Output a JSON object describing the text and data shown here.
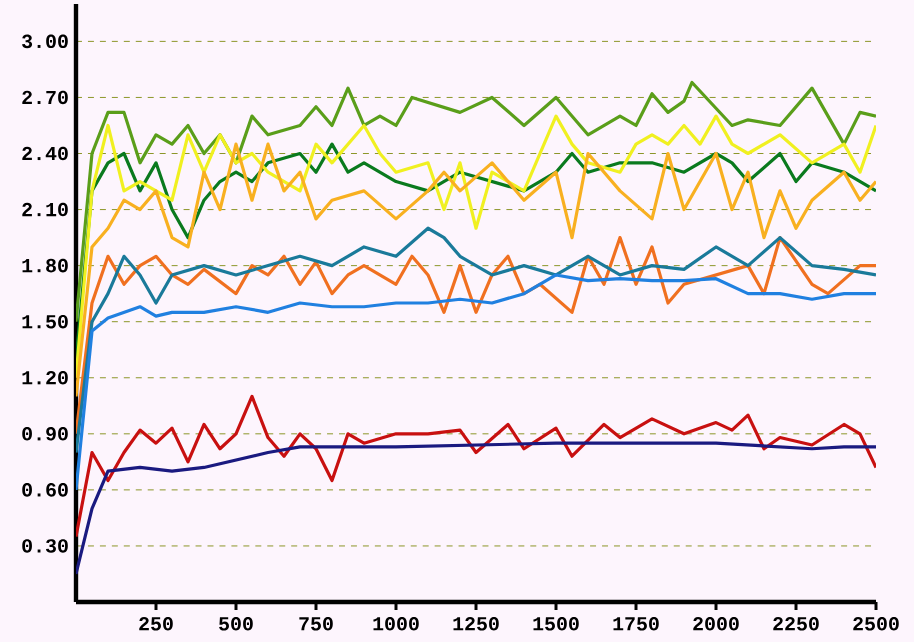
{
  "chart_data": {
    "type": "line",
    "xlim": [
      0,
      2500
    ],
    "ylim": [
      0,
      3.2
    ],
    "xticks": [
      250,
      500,
      750,
      1000,
      1250,
      1500,
      1750,
      2000,
      2250,
      2500
    ],
    "yticks": [
      {
        "value": 0.3,
        "label": "0.30"
      },
      {
        "value": 0.6,
        "label": "0.60"
      },
      {
        "value": 0.9,
        "label": "0.90"
      },
      {
        "value": 1.2,
        "label": "1.20"
      },
      {
        "value": 1.5,
        "label": "1.50"
      },
      {
        "value": 1.8,
        "label": "1.80"
      },
      {
        "value": 2.1,
        "label": "2.10"
      },
      {
        "value": 2.4,
        "label": "2.40"
      },
      {
        "value": 2.7,
        "label": "2.70"
      },
      {
        "value": 3.0,
        "label": "3.00"
      }
    ],
    "grid": "y",
    "marker": "none",
    "line_style": "solid",
    "series": [
      {
        "color": "#5a9e1a",
        "x": [
          0,
          50,
          100,
          150,
          200,
          250,
          300,
          350,
          400,
          450,
          500,
          550,
          600,
          700,
          750,
          800,
          850,
          900,
          950,
          1000,
          1050,
          1200,
          1300,
          1400,
          1500,
          1600,
          1700,
          1750,
          1800,
          1850,
          1900,
          1925,
          2050,
          2100,
          2200,
          2300,
          2400,
          2450,
          2500
        ],
        "values": [
          1.5,
          2.4,
          2.62,
          2.62,
          2.35,
          2.5,
          2.45,
          2.55,
          2.4,
          2.5,
          2.35,
          2.6,
          2.5,
          2.55,
          2.65,
          2.55,
          2.75,
          2.55,
          2.6,
          2.55,
          2.7,
          2.62,
          2.7,
          2.55,
          2.7,
          2.5,
          2.6,
          2.55,
          2.72,
          2.62,
          2.68,
          2.78,
          2.55,
          2.58,
          2.55,
          2.75,
          2.45,
          2.62,
          2.6
        ]
      },
      {
        "color": "#0a7a1e",
        "x": [
          0,
          50,
          100,
          150,
          200,
          250,
          300,
          350,
          400,
          450,
          500,
          550,
          600,
          700,
          750,
          800,
          850,
          900,
          1000,
          1100,
          1200,
          1300,
          1400,
          1500,
          1550,
          1600,
          1700,
          1800,
          1900,
          2000,
          2050,
          2100,
          2200,
          2250,
          2300,
          2400,
          2450,
          2500
        ],
        "values": [
          1.3,
          2.2,
          2.35,
          2.4,
          2.2,
          2.35,
          2.1,
          1.95,
          2.15,
          2.25,
          2.3,
          2.25,
          2.35,
          2.4,
          2.3,
          2.45,
          2.3,
          2.35,
          2.25,
          2.2,
          2.3,
          2.25,
          2.2,
          2.3,
          2.4,
          2.3,
          2.35,
          2.35,
          2.3,
          2.4,
          2.35,
          2.25,
          2.4,
          2.25,
          2.35,
          2.3,
          2.25,
          2.2
        ]
      },
      {
        "color": "#f0f020",
        "x": [
          0,
          50,
          100,
          150,
          200,
          250,
          300,
          350,
          400,
          450,
          500,
          550,
          600,
          700,
          750,
          800,
          900,
          950,
          1000,
          1100,
          1150,
          1200,
          1250,
          1300,
          1400,
          1500,
          1550,
          1600,
          1700,
          1750,
          1800,
          1850,
          1900,
          1950,
          2000,
          2050,
          2100,
          2200,
          2300,
          2400,
          2450,
          2500
        ],
        "values": [
          1.2,
          2.2,
          2.55,
          2.2,
          2.25,
          2.2,
          2.15,
          2.5,
          2.3,
          2.5,
          2.35,
          2.4,
          2.3,
          2.2,
          2.45,
          2.35,
          2.55,
          2.4,
          2.3,
          2.35,
          2.1,
          2.35,
          2.0,
          2.3,
          2.2,
          2.6,
          2.45,
          2.35,
          2.3,
          2.45,
          2.5,
          2.45,
          2.55,
          2.45,
          2.6,
          2.45,
          2.4,
          2.5,
          2.35,
          2.45,
          2.3,
          2.55
        ]
      },
      {
        "color": "#f8b020",
        "x": [
          0,
          50,
          100,
          150,
          200,
          250,
          300,
          350,
          400,
          450,
          500,
          550,
          600,
          650,
          700,
          750,
          800,
          900,
          1000,
          1100,
          1150,
          1200,
          1300,
          1400,
          1500,
          1550,
          1600,
          1700,
          1800,
          1850,
          1900,
          2000,
          2050,
          2100,
          2150,
          2200,
          2250,
          2300,
          2400,
          2450,
          2500
        ],
        "values": [
          1.1,
          1.9,
          2.0,
          2.15,
          2.1,
          2.2,
          1.95,
          1.9,
          2.3,
          2.1,
          2.45,
          2.15,
          2.45,
          2.2,
          2.3,
          2.05,
          2.15,
          2.2,
          2.05,
          2.2,
          2.3,
          2.2,
          2.35,
          2.15,
          2.3,
          1.95,
          2.4,
          2.2,
          2.05,
          2.4,
          2.1,
          2.4,
          2.1,
          2.3,
          1.95,
          2.2,
          2.0,
          2.15,
          2.3,
          2.15,
          2.25
        ]
      },
      {
        "color": "#f07020",
        "x": [
          0,
          50,
          100,
          150,
          200,
          250,
          300,
          350,
          400,
          500,
          550,
          600,
          650,
          700,
          750,
          800,
          850,
          900,
          1000,
          1050,
          1100,
          1150,
          1200,
          1250,
          1300,
          1350,
          1400,
          1450,
          1550,
          1600,
          1650,
          1700,
          1750,
          1800,
          1850,
          1900,
          2000,
          2100,
          2150,
          2200,
          2300,
          2350,
          2450,
          2500
        ],
        "values": [
          0.9,
          1.6,
          1.85,
          1.7,
          1.8,
          1.85,
          1.75,
          1.7,
          1.78,
          1.65,
          1.8,
          1.75,
          1.85,
          1.7,
          1.82,
          1.65,
          1.75,
          1.8,
          1.7,
          1.85,
          1.75,
          1.55,
          1.8,
          1.55,
          1.75,
          1.85,
          1.65,
          1.7,
          1.55,
          1.85,
          1.7,
          1.95,
          1.7,
          1.9,
          1.6,
          1.7,
          1.75,
          1.8,
          1.65,
          1.95,
          1.7,
          1.65,
          1.8,
          1.8
        ]
      },
      {
        "color": "#1a7a9a",
        "x": [
          0,
          50,
          100,
          150,
          200,
          250,
          300,
          400,
          500,
          600,
          700,
          800,
          900,
          1000,
          1100,
          1150,
          1200,
          1300,
          1400,
          1500,
          1600,
          1700,
          1800,
          1900,
          2000,
          2100,
          2200,
          2300,
          2400,
          2500
        ],
        "values": [
          0.8,
          1.5,
          1.65,
          1.85,
          1.75,
          1.6,
          1.75,
          1.8,
          1.75,
          1.8,
          1.85,
          1.8,
          1.9,
          1.85,
          2.0,
          1.95,
          1.85,
          1.75,
          1.8,
          1.75,
          1.85,
          1.75,
          1.8,
          1.78,
          1.9,
          1.8,
          1.95,
          1.8,
          1.78,
          1.75
        ]
      },
      {
        "color": "#2080e0",
        "x": [
          0,
          50,
          100,
          150,
          200,
          250,
          300,
          400,
          500,
          600,
          700,
          800,
          900,
          1000,
          1100,
          1200,
          1300,
          1400,
          1500,
          1600,
          1700,
          1800,
          1900,
          2000,
          2100,
          2200,
          2300,
          2400,
          2500
        ],
        "values": [
          0.6,
          1.45,
          1.52,
          1.55,
          1.58,
          1.53,
          1.55,
          1.55,
          1.58,
          1.55,
          1.6,
          1.58,
          1.58,
          1.6,
          1.6,
          1.62,
          1.6,
          1.65,
          1.75,
          1.72,
          1.73,
          1.72,
          1.72,
          1.73,
          1.65,
          1.65,
          1.62,
          1.65,
          1.65
        ]
      },
      {
        "color": "#c81010",
        "x": [
          0,
          50,
          100,
          150,
          200,
          250,
          300,
          350,
          400,
          450,
          500,
          550,
          600,
          650,
          700,
          750,
          800,
          850,
          900,
          1000,
          1100,
          1200,
          1250,
          1350,
          1400,
          1500,
          1550,
          1650,
          1700,
          1800,
          1900,
          2000,
          2050,
          2100,
          2150,
          2200,
          2300,
          2400,
          2450,
          2500
        ],
        "values": [
          0.35,
          0.8,
          0.65,
          0.8,
          0.92,
          0.85,
          0.93,
          0.75,
          0.95,
          0.82,
          0.9,
          1.1,
          0.88,
          0.78,
          0.9,
          0.82,
          0.65,
          0.9,
          0.85,
          0.9,
          0.9,
          0.92,
          0.8,
          0.95,
          0.82,
          0.93,
          0.78,
          0.95,
          0.88,
          0.98,
          0.9,
          0.96,
          0.92,
          1.0,
          0.82,
          0.88,
          0.84,
          0.95,
          0.9,
          0.72
        ]
      },
      {
        "color": "#1a1a80",
        "x": [
          0,
          50,
          100,
          200,
          300,
          400,
          500,
          600,
          700,
          1000,
          1500,
          2000,
          2300,
          2400,
          2500
        ],
        "values": [
          0.15,
          0.5,
          0.7,
          0.72,
          0.7,
          0.72,
          0.76,
          0.8,
          0.83,
          0.83,
          0.85,
          0.85,
          0.82,
          0.83,
          0.83
        ]
      }
    ]
  }
}
